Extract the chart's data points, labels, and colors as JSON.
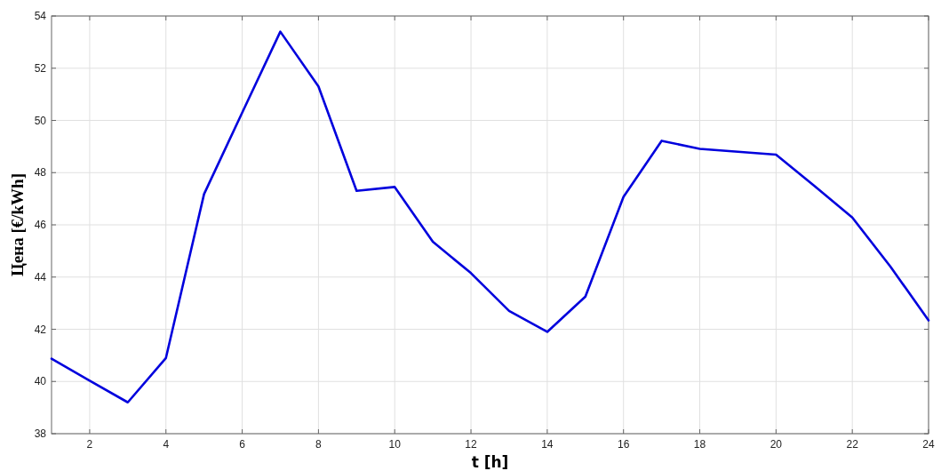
{
  "chart_data": {
    "type": "line",
    "xlabel": "t [h]",
    "ylabel": "Цена [€/kWh]",
    "x": [
      1,
      2,
      3,
      4,
      5,
      6,
      7,
      8,
      9,
      10,
      11,
      12,
      13,
      14,
      15,
      16,
      17,
      18,
      19,
      20,
      21,
      22,
      23,
      24
    ],
    "series": [
      {
        "color": "#0000dd",
        "values": [
          40.87,
          40.03,
          39.2,
          40.9,
          47.18,
          50.3,
          53.4,
          51.3,
          47.3,
          47.45,
          45.35,
          44.15,
          42.7,
          41.9,
          43.25,
          47.07,
          49.22,
          48.91,
          48.8,
          48.69,
          47.5,
          46.28,
          44.4,
          42.34
        ]
      }
    ],
    "xlim": [
      1,
      24
    ],
    "xticks": [
      2,
      4,
      6,
      8,
      10,
      12,
      14,
      16,
      18,
      20,
      22,
      24
    ],
    "ylim": [
      38,
      54
    ],
    "yticks": [
      38,
      40,
      42,
      44,
      46,
      48,
      50,
      52,
      54
    ],
    "grid": true,
    "marker": "none",
    "line_style": "solid"
  }
}
